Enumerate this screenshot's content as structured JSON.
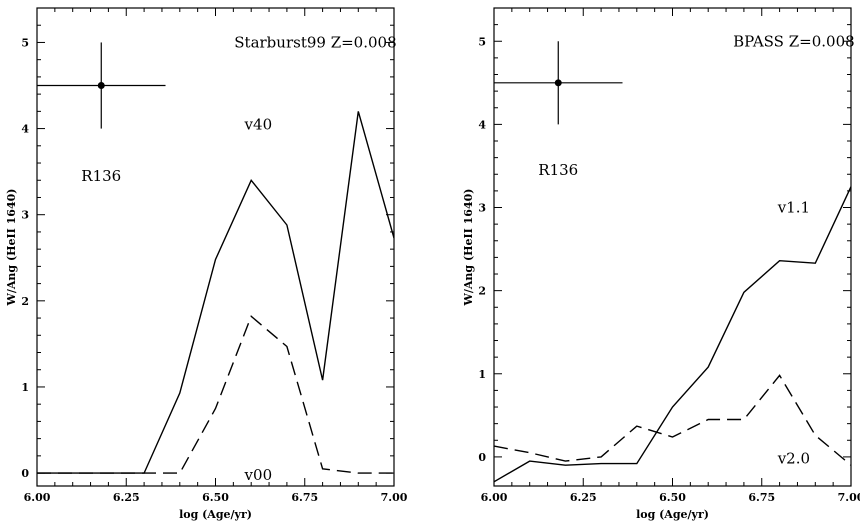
{
  "chart_data": [
    {
      "type": "line",
      "xlabel": "log (Age/yr)",
      "ylabel": "W/Ang (HeII 1640)",
      "xlim": [
        6.0,
        7.0
      ],
      "ylim": [
        -0.15,
        5.4
      ],
      "xticks": [
        "6.00",
        "6.25",
        "6.50",
        "6.75",
        "7.00"
      ],
      "yticks": [
        "0",
        "1",
        "2",
        "3",
        "4",
        "5"
      ],
      "annotations": {
        "model": "Starburst99 Z=0.008",
        "point": "R136",
        "solid": "v40",
        "dashed": "v00"
      },
      "reference_point": {
        "x": 6.18,
        "y": 4.5,
        "x_err": 0.18,
        "y_err": 0.5
      },
      "series": [
        {
          "style": "solid",
          "x": [
            6.0,
            6.3,
            6.4,
            6.5,
            6.6,
            6.7,
            6.8,
            6.9,
            7.0
          ],
          "y": [
            0.0,
            0.0,
            0.93,
            2.48,
            3.4,
            2.88,
            1.08,
            4.2,
            2.73
          ]
        },
        {
          "style": "dashed",
          "x": [
            6.0,
            6.4,
            6.5,
            6.6,
            6.7,
            6.8,
            6.9,
            7.0
          ],
          "y": [
            0.0,
            0.0,
            0.75,
            1.82,
            1.47,
            0.05,
            0.0,
            0.0
          ]
        }
      ]
    },
    {
      "type": "line",
      "xlabel": "log (Age/yr)",
      "ylabel": "W/Ang (HeII 1640)",
      "xlim": [
        6.0,
        7.0
      ],
      "ylim": [
        -0.35,
        5.4
      ],
      "xticks": [
        "6.00",
        "6.25",
        "6.50",
        "6.75",
        "7.00"
      ],
      "yticks": [
        "0",
        "1",
        "2",
        "3",
        "4",
        "5"
      ],
      "annotations": {
        "model": "BPASS Z=0.008",
        "point": "R136",
        "solid": "v1.1",
        "dashed": "v2.0"
      },
      "reference_point": {
        "x": 6.18,
        "y": 4.5,
        "x_err": 0.18,
        "y_err": 0.5
      },
      "series": [
        {
          "style": "solid",
          "x": [
            6.0,
            6.1,
            6.2,
            6.3,
            6.4,
            6.5,
            6.6,
            6.7,
            6.8,
            6.9,
            7.0
          ],
          "y": [
            -0.3,
            -0.05,
            -0.1,
            -0.08,
            -0.08,
            0.6,
            1.08,
            1.98,
            2.36,
            2.33,
            3.25
          ]
        },
        {
          "style": "dashed",
          "x": [
            6.0,
            6.1,
            6.2,
            6.3,
            6.4,
            6.5,
            6.6,
            6.7,
            6.8,
            6.9,
            7.0
          ],
          "y": [
            0.13,
            0.05,
            -0.05,
            0.0,
            0.37,
            0.24,
            0.45,
            0.45,
            0.98,
            0.26,
            -0.1
          ]
        }
      ]
    }
  ]
}
